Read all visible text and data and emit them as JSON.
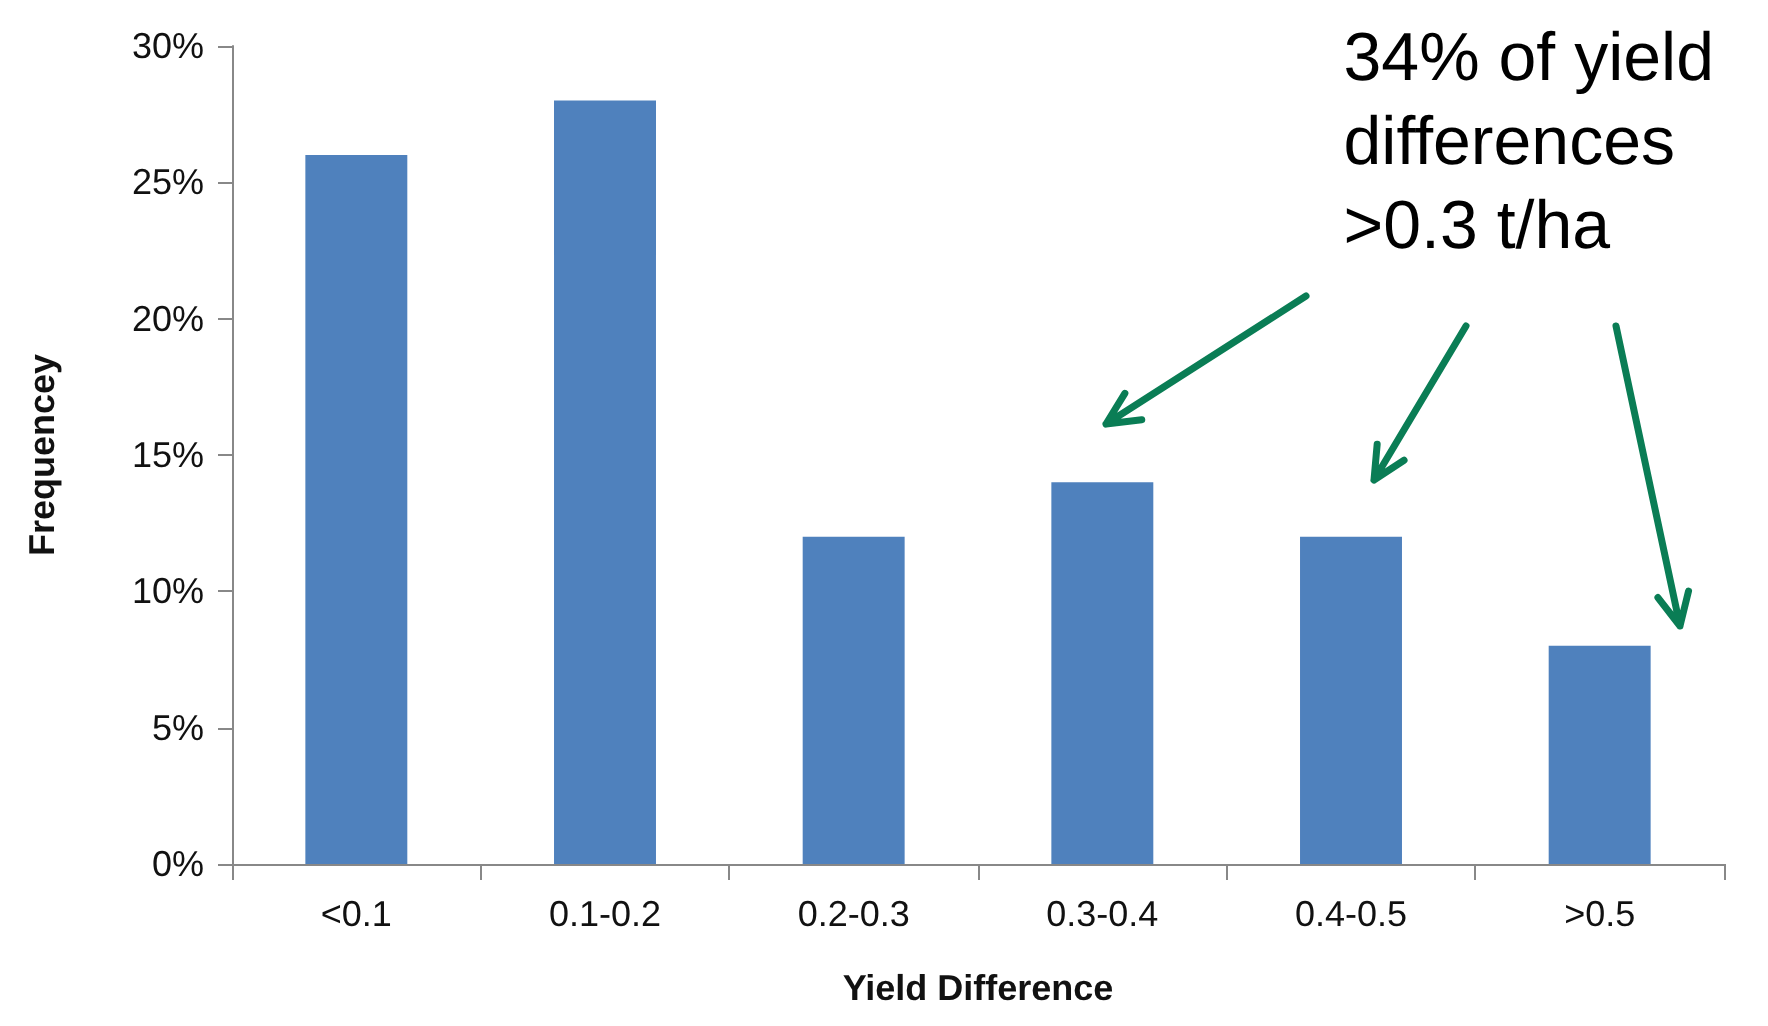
{
  "chart_data": {
    "type": "bar",
    "categories": [
      "<0.1",
      "0.1-0.2",
      "0.2-0.3",
      "0.3-0.4",
      "0.4-0.5",
      ">0.5"
    ],
    "values": [
      26,
      28,
      12,
      14,
      12,
      8
    ],
    "color": "#4f81bd",
    "xlabel": "Yield Difference",
    "ylabel": "Frequencey",
    "ylim": [
      0,
      30
    ],
    "yticks": [
      {
        "value": 0,
        "label": "0%"
      },
      {
        "value": 5,
        "label": "5%"
      },
      {
        "value": 10,
        "label": "10%"
      },
      {
        "value": 15,
        "label": "15%"
      },
      {
        "value": 20,
        "label": "20%"
      },
      {
        "value": 25,
        "label": "25%"
      },
      {
        "value": 30,
        "label": "30%"
      }
    ],
    "grid": false,
    "annotations": [
      "34% of yield\ndifferences\n>0.3 t/ha"
    ]
  }
}
